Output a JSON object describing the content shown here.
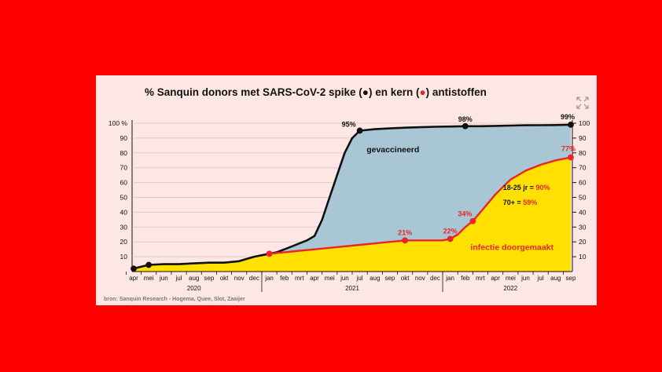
{
  "chart_data": {
    "type": "area",
    "title": "% Sanquin donors met SARS-CoV-2 spike (●) en kern (●) antistoffen",
    "title_parts": {
      "pre": "% Sanquin donors met SARS-CoV-2 spike (",
      "marker1": "●",
      "mid": ") en kern (",
      "marker2": "●",
      "post": ") antistoffen"
    },
    "y_unit": "%",
    "ylim": [
      0,
      100
    ],
    "yticks": [
      10,
      20,
      30,
      40,
      50,
      60,
      70,
      80,
      90,
      100
    ],
    "months": [
      "apr",
      "mei",
      "jun",
      "jul",
      "aug",
      "sep",
      "okt",
      "nov",
      "dec",
      "jan",
      "feb",
      "mrt",
      "apr",
      "mei",
      "jun",
      "jul",
      "aug",
      "sep",
      "okt",
      "nov",
      "dec",
      "jan",
      "feb",
      "mrt",
      "apr",
      "mei",
      "jun",
      "jul",
      "aug",
      "sep"
    ],
    "years": [
      "2020",
      "2021",
      "2022"
    ],
    "series": [
      {
        "name": "spike",
        "color": "#111111",
        "area_label": "gevaccineerd",
        "area_color": "#a9c6d4",
        "x": [
          0,
          1,
          2,
          3,
          4,
          5,
          6,
          7,
          7.5,
          8,
          8.5,
          9,
          9.5,
          10,
          10.5,
          11,
          11.5,
          12,
          12.5,
          13,
          13.5,
          14,
          14.5,
          15,
          16,
          17,
          18,
          19,
          20,
          21,
          22,
          23,
          24,
          25,
          26,
          27,
          28,
          29
        ],
        "values": [
          2,
          4.5,
          5,
          5,
          5.5,
          6,
          6,
          7,
          8.5,
          10,
          11,
          12,
          13,
          15,
          17,
          19,
          21,
          24,
          35,
          50,
          65,
          80,
          90,
          95,
          96,
          96.5,
          97,
          97.3,
          97.6,
          97.8,
          98,
          98,
          98.2,
          98.4,
          98.6,
          98.7,
          98.8,
          99
        ]
      },
      {
        "name": "kern",
        "color": "#e8262a",
        "area_label": "infectie doorgemaakt",
        "area_color": "#ffe000",
        "x": [
          9,
          10,
          11,
          12,
          13,
          14,
          15,
          16,
          17,
          18,
          19,
          20,
          20.5,
          21,
          21.5,
          22,
          22.5,
          23,
          24,
          25,
          26,
          27,
          28,
          29
        ],
        "values": [
          12,
          13,
          14,
          15,
          16,
          17,
          18,
          19,
          20,
          21,
          21,
          21,
          21,
          22,
          25,
          30,
          34,
          40,
          52,
          62,
          68,
          72,
          75,
          77
        ]
      }
    ],
    "markers": [
      {
        "series": "spike",
        "x": 0,
        "value": 2,
        "label": ""
      },
      {
        "series": "spike",
        "x": 1,
        "value": 4.5,
        "label": ""
      },
      {
        "series": "spike",
        "x": 15,
        "value": 95,
        "label": "95%"
      },
      {
        "series": "spike",
        "x": 22,
        "value": 98,
        "label": "98%"
      },
      {
        "series": "spike",
        "x": 29,
        "value": 99,
        "label": "99%"
      },
      {
        "series": "kern",
        "x": 9,
        "value": 12,
        "label": ""
      },
      {
        "series": "kern",
        "x": 18,
        "value": 21,
        "label": "21%"
      },
      {
        "series": "kern",
        "x": 21,
        "value": 22,
        "label": "22%"
      },
      {
        "series": "kern",
        "x": 22.5,
        "value": 34,
        "label": "34%"
      },
      {
        "series": "kern",
        "x": 29,
        "value": 77,
        "label": "77%"
      }
    ],
    "age_notes": [
      {
        "prefix": "18-25 jr = ",
        "value": "90%"
      },
      {
        "prefix": "70+     = ",
        "value": "59%"
      }
    ],
    "source": "bron: Sanquin Research - Hogema, Quee, Slot, Zaaijer"
  },
  "colors": {
    "page_background": "#ff0000",
    "panel_background": "#fde7e4",
    "grid": "#e3c9c6",
    "spike_line": "#111111",
    "kern_line": "#e8262a",
    "spike_area": "#a9c6d4",
    "kern_area": "#ffe000"
  },
  "icons": {
    "expand": "expand-arrows-icon"
  }
}
